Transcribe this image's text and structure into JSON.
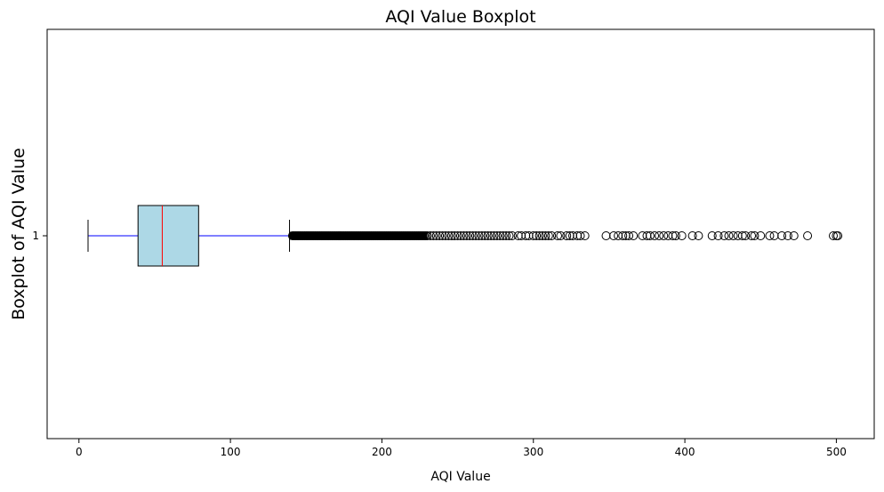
{
  "chart_data": {
    "type": "boxplot",
    "orientation": "horizontal",
    "title": "AQI Value Boxplot",
    "xlabel": "AQI Value",
    "ylabel": "Boxplot of AQI Value",
    "xlim": [
      -21,
      525
    ],
    "x_ticks": [
      0,
      100,
      200,
      300,
      400,
      500
    ],
    "y_ticks": [
      "1"
    ],
    "box": {
      "category": "1",
      "whisker_low": 6,
      "q1": 39,
      "median": 55,
      "q3": 79,
      "whisker_high": 139
    },
    "outlier_dense_range": [
      139,
      230
    ],
    "outliers": [
      141,
      142,
      143,
      144,
      145,
      146,
      147,
      148,
      149,
      150,
      151,
      152,
      153,
      154,
      155,
      156,
      157,
      158,
      159,
      160,
      161,
      162,
      163,
      164,
      165,
      166,
      167,
      168,
      169,
      170,
      171,
      172,
      173,
      174,
      175,
      176,
      177,
      178,
      179,
      180,
      181,
      182,
      183,
      184,
      185,
      186,
      187,
      188,
      189,
      190,
      191,
      192,
      193,
      194,
      195,
      196,
      197,
      198,
      199,
      200,
      201,
      202,
      203,
      204,
      205,
      206,
      207,
      208,
      209,
      210,
      211,
      212,
      213,
      214,
      215,
      216,
      217,
      218,
      219,
      220,
      221,
      222,
      223,
      224,
      225,
      226,
      227,
      228,
      229,
      230,
      232,
      234,
      236,
      238,
      240,
      242,
      244,
      246,
      248,
      250,
      252,
      254,
      256,
      258,
      260,
      262,
      264,
      266,
      268,
      270,
      272,
      274,
      276,
      278,
      280,
      282,
      284,
      286,
      290,
      292,
      295,
      297,
      300,
      302,
      304,
      306,
      308,
      310,
      312,
      316,
      318,
      322,
      324,
      326,
      329,
      331,
      334,
      348,
      353,
      356,
      359,
      361,
      363,
      366,
      372,
      375,
      377,
      380,
      383,
      386,
      389,
      392,
      394,
      398,
      405,
      409,
      418,
      422,
      426,
      429,
      432,
      435,
      438,
      440,
      444,
      446,
      450,
      456,
      459,
      464,
      468,
      472,
      481,
      498,
      500,
      501
    ],
    "colors": {
      "box_fill": "#add8e6",
      "box_edge": "#000000",
      "median": "#ff0000",
      "whisker": "#0000ff",
      "cap": "#000000",
      "outlier_edge": "#000000"
    },
    "grid": false,
    "legend": "none"
  }
}
